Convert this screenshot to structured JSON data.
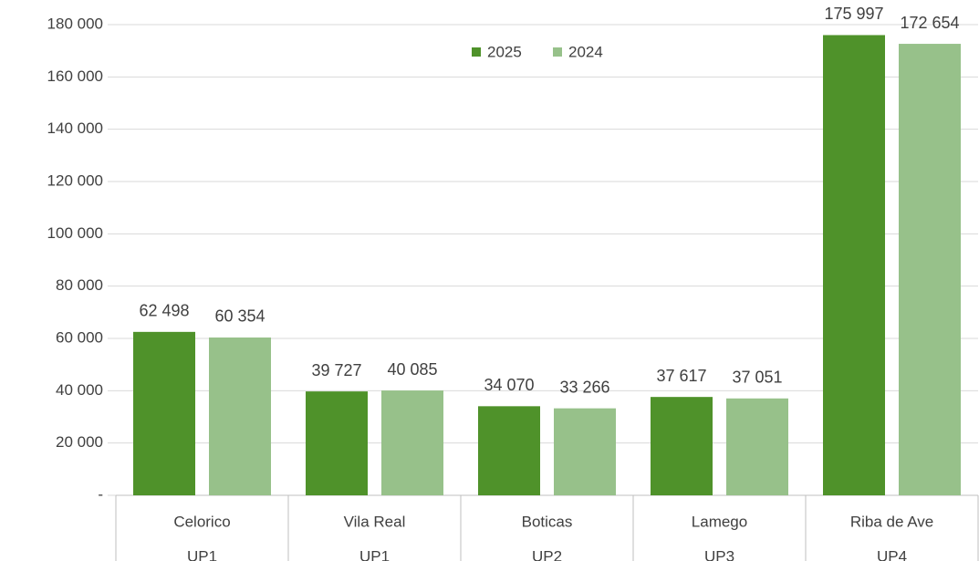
{
  "chart_data": {
    "type": "bar",
    "categories": [
      "Celorico",
      "Vila Real",
      "Boticas",
      "Lamego",
      "Riba de Ave"
    ],
    "category_groups": [
      "UP1",
      "UP1",
      "UP2",
      "UP3",
      "UP4"
    ],
    "series": [
      {
        "name": "2025",
        "color": "#4f922a",
        "values": [
          62498,
          39727,
          34070,
          37617,
          175997
        ],
        "value_labels": [
          "62 498",
          "39 727",
          "34 070",
          "37 617",
          "175 997"
        ]
      },
      {
        "name": "2024",
        "color": "#97c18a",
        "values": [
          60354,
          40085,
          33266,
          37051,
          172654
        ],
        "value_labels": [
          "60 354",
          "40 085",
          "33 266",
          "37 051",
          "172 654"
        ]
      }
    ],
    "ylim": [
      0,
      180000
    ],
    "yticks": [
      {
        "value": 0,
        "label": "-"
      },
      {
        "value": 20000,
        "label": "20 000"
      },
      {
        "value": 40000,
        "label": "40 000"
      },
      {
        "value": 60000,
        "label": "60 000"
      },
      {
        "value": 80000,
        "label": "80 000"
      },
      {
        "value": 100000,
        "label": "100 000"
      },
      {
        "value": 120000,
        "label": "120 000"
      },
      {
        "value": 140000,
        "label": "140 000"
      },
      {
        "value": 160000,
        "label": "160 000"
      },
      {
        "value": 180000,
        "label": "180 000"
      }
    ],
    "grid": true,
    "legend": "top"
  }
}
